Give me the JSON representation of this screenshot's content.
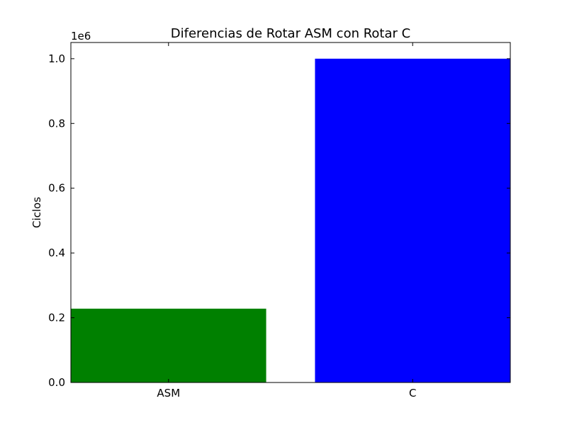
{
  "chart_data": {
    "type": "bar",
    "title": "Diferencias de Rotar ASM con Rotar C",
    "ylabel": "Ciclos",
    "xlabel": "",
    "offset_label": "1e6",
    "categories": [
      "ASM",
      "C"
    ],
    "values": [
      228000,
      1000000
    ],
    "colors": [
      "#008000",
      "#0000ff"
    ],
    "ylim": [
      0,
      1050000
    ],
    "yticks": [
      0,
      200000,
      400000,
      600000,
      800000,
      1000000
    ],
    "ytick_labels": [
      "0.0",
      "0.2",
      "0.4",
      "0.6",
      "0.8",
      "1.0"
    ],
    "grid": false,
    "legend": "none"
  }
}
